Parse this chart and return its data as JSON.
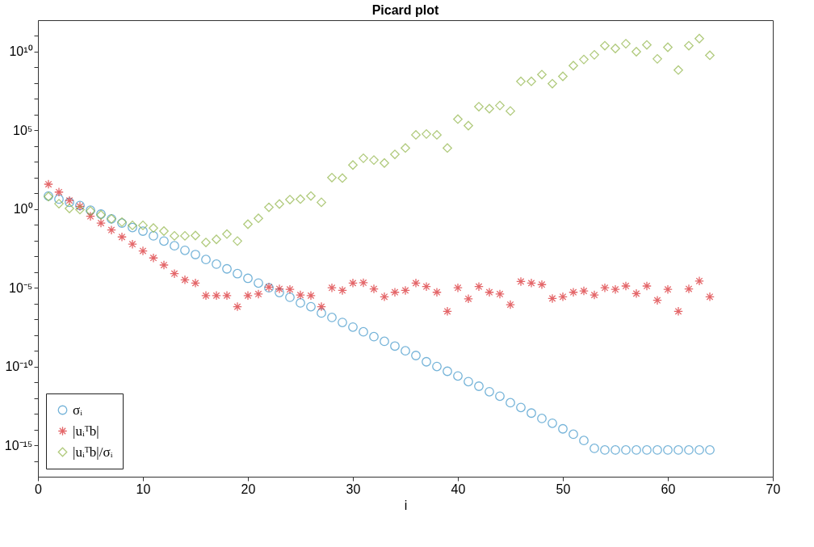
{
  "chart_data": {
    "type": "scatter",
    "title": "Picard plot",
    "xlabel": "i",
    "x": [
      1,
      2,
      3,
      4,
      5,
      6,
      7,
      8,
      9,
      10,
      11,
      12,
      13,
      14,
      15,
      16,
      17,
      18,
      19,
      20,
      21,
      22,
      23,
      24,
      25,
      26,
      27,
      28,
      29,
      30,
      31,
      32,
      33,
      34,
      35,
      36,
      37,
      38,
      39,
      40,
      41,
      42,
      43,
      44,
      45,
      46,
      47,
      48,
      49,
      50,
      51,
      52,
      53,
      54,
      55,
      56,
      57,
      58,
      59,
      60,
      61,
      62,
      63,
      64
    ],
    "series": [
      {
        "name": "σᵢ",
        "color": "#3a93c8",
        "marker": "circle",
        "values": [
          6.8,
          4.3,
          2.7,
          1.7,
          0.85,
          0.48,
          0.24,
          0.13,
          0.068,
          0.04,
          0.02,
          0.0093,
          0.0047,
          0.0024,
          0.0013,
          0.00063,
          0.00032,
          0.00016,
          7.9e-05,
          4e-05,
          2e-05,
          1e-05,
          5e-06,
          2.5e-06,
          1.1e-06,
          6.3e-07,
          2.5e-07,
          1.3e-07,
          6.3e-08,
          3.2e-08,
          1.6e-08,
          7.9e-09,
          4e-09,
          2e-09,
          1e-09,
          5e-10,
          2e-10,
          1e-10,
          5e-11,
          2.5e-11,
          1.1e-11,
          5.6e-12,
          2.5e-12,
          1.3e-12,
          5e-13,
          2.5e-13,
          1.1e-13,
          5e-14,
          2.5e-14,
          1.1e-14,
          5e-15,
          2e-15,
          6.3e-16,
          5e-16,
          5e-16,
          5e-16,
          5e-16,
          5e-16,
          5e-16,
          5e-16,
          5e-16,
          5e-16,
          5e-16,
          5e-16
        ]
      },
      {
        "name": "|uᵢᵀb|",
        "color": "#d9262a",
        "marker": "cross",
        "values": [
          38,
          12,
          3.5,
          1.5,
          0.35,
          0.13,
          0.047,
          0.017,
          0.0059,
          0.0022,
          0.00079,
          0.00028,
          7.9e-05,
          3.2e-05,
          2e-05,
          3.2e-06,
          3.2e-06,
          3.2e-06,
          6.3e-07,
          3.2e-06,
          4e-06,
          1.1e-05,
          8.5e-06,
          7.9e-06,
          3.5e-06,
          3.2e-06,
          6.3e-07,
          1e-05,
          6.8e-06,
          2e-05,
          2.1e-05,
          8.5e-06,
          2.7e-06,
          5.2e-06,
          6.8e-06,
          2e-05,
          1.2e-05,
          5.2e-06,
          3.2e-07,
          1e-05,
          2e-06,
          1.2e-05,
          5.2e-06,
          4e-06,
          8.5e-07,
          2.5e-05,
          2e-05,
          1.6e-05,
          2.1e-06,
          2.7e-06,
          5.2e-06,
          6.3e-06,
          3.5e-06,
          1e-05,
          7.9e-06,
          1.3e-05,
          4.3e-06,
          1.3e-05,
          1.6e-06,
          7.9e-06,
          3.2e-07,
          8.5e-06,
          2.7e-05,
          2.7e-06
        ]
      },
      {
        "name": "|uᵢᵀb|/σᵢ",
        "color": "#8fb446",
        "marker": "diamond",
        "values": [
          6.3,
          2.2,
          1.1,
          0.93,
          0.76,
          0.43,
          0.24,
          0.15,
          0.093,
          0.093,
          0.063,
          0.04,
          0.02,
          0.02,
          0.021,
          0.0076,
          0.012,
          0.026,
          0.0093,
          0.11,
          0.26,
          1.3,
          2.1,
          4,
          4.3,
          6.8,
          2.7,
          100,
          93,
          630,
          1700,
          1300,
          850,
          3000,
          7600,
          52000,
          59000,
          52000,
          7600,
          520000.0,
          200000.0,
          3200000.0,
          2400000.0,
          3800000.0,
          1700000.0,
          130000000.0,
          130000000.0,
          350000000.0,
          93000000.0,
          270000000.0,
          1300000000.0,
          3200000000.0,
          6300000000.0,
          24000000000.0,
          16000000000.0,
          32000000000.0,
          10000000000.0,
          27000000000.0,
          3500000000.0,
          19000000000.0,
          680000000.0,
          24000000000.0,
          68000000000.0,
          5900000000.0
        ]
      }
    ],
    "xlim": [
      0,
      70
    ],
    "xticks": [
      0,
      10,
      20,
      30,
      40,
      50,
      60,
      70
    ],
    "ylim": [
      1e-17,
      1000000000000.0
    ],
    "yticks": [
      {
        "value": 1e-16,
        "label": null
      },
      {
        "value": 1e-15,
        "label": "10⁻¹⁵"
      },
      {
        "value": 1e-14,
        "label": null
      },
      {
        "value": 1e-13,
        "label": null
      },
      {
        "value": 1e-12,
        "label": null
      },
      {
        "value": 1e-11,
        "label": null
      },
      {
        "value": 1e-10,
        "label": "10⁻¹⁰"
      },
      {
        "value": 1e-09,
        "label": null
      },
      {
        "value": 1e-08,
        "label": null
      },
      {
        "value": 1e-07,
        "label": null
      },
      {
        "value": 1e-06,
        "label": null
      },
      {
        "value": 1e-05,
        "label": "10⁻⁵"
      },
      {
        "value": 0.0001,
        "label": null
      },
      {
        "value": 0.001,
        "label": null
      },
      {
        "value": 0.01,
        "label": null
      },
      {
        "value": 0.1,
        "label": null
      },
      {
        "value": 1,
        "label": "10⁰"
      },
      {
        "value": 10,
        "label": null
      },
      {
        "value": 100,
        "label": null
      },
      {
        "value": 1000,
        "label": null
      },
      {
        "value": 10000,
        "label": null
      },
      {
        "value": 100000,
        "label": "10⁵"
      },
      {
        "value": 1000000.0,
        "label": null
      },
      {
        "value": 10000000.0,
        "label": null
      },
      {
        "value": 100000000.0,
        "label": null
      },
      {
        "value": 1000000000.0,
        "label": null
      },
      {
        "value": 10000000000.0,
        "label": "10¹⁰"
      },
      {
        "value": 100000000000.0,
        "label": null
      }
    ],
    "log": "y",
    "grid": false,
    "legend": "bottom left"
  }
}
